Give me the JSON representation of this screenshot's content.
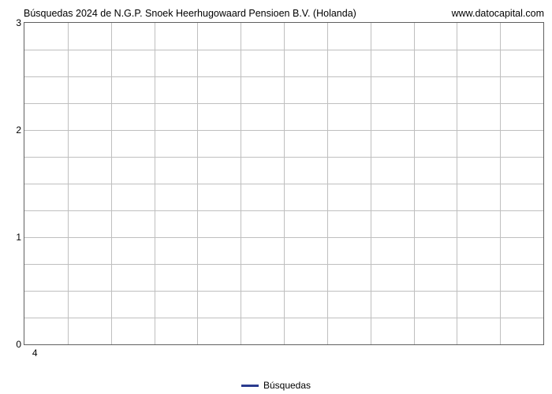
{
  "chart": {
    "type": "line",
    "title_left": "Búsquedas 2024 de N.G.P. Snoek Heerhugowaard Pensioen B.V. (Holanda)",
    "title_right": "www.datocapital.com",
    "title_fontsize": 12.5,
    "title_color": "#000000",
    "background_color": "#ffffff",
    "plot_border_color": "#606060",
    "grid_color": "#bfbfbf",
    "tick_label_color": "#000000",
    "tick_fontsize": 12,
    "y_axis": {
      "min": 0,
      "max": 3,
      "major_ticks": [
        0,
        1,
        2,
        3
      ],
      "minor_per_major": 4
    },
    "x_axis": {
      "visible_ticks": [
        4
      ],
      "column_count": 12
    },
    "series": [
      {
        "name": "Búsquedas",
        "color": "#2a3b8f",
        "line_width": 3,
        "data": []
      }
    ],
    "legend": {
      "items": [
        {
          "label": "Búsquedas",
          "color": "#2a3b8f"
        }
      ],
      "fontsize": 12,
      "position": "bottom-center"
    }
  }
}
